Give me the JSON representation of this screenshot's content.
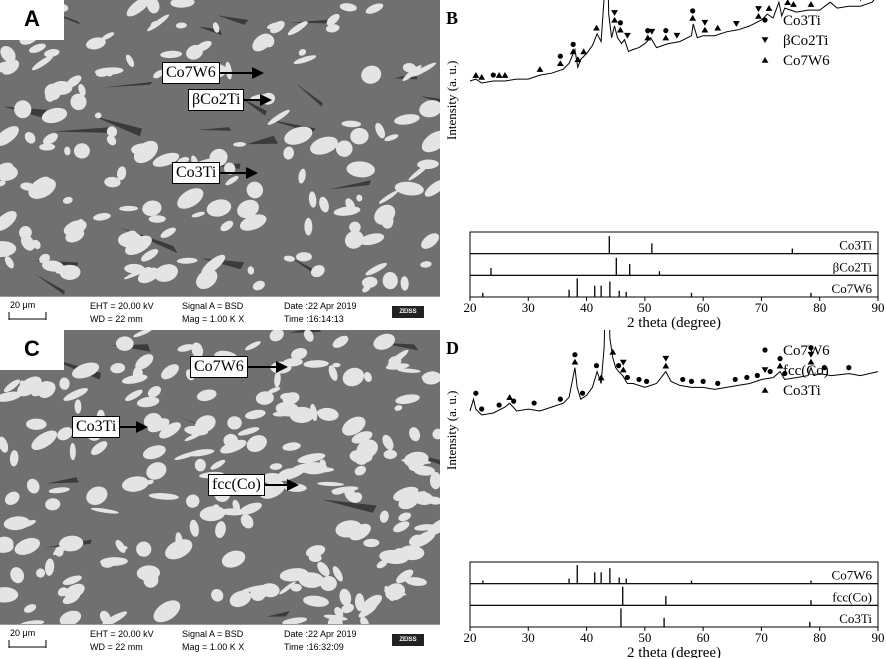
{
  "panels": {
    "A": {
      "label": "A",
      "annotations": [
        {
          "text": "Co7W6"
        },
        {
          "text": "βCo2Ti"
        },
        {
          "text": "Co3Ti"
        }
      ],
      "databar": {
        "scale": "20 μm",
        "eht": "EHT = 20.00 kV",
        "wd": "WD =  22 mm",
        "signal": "Signal A = BSD",
        "mag": "Mag =    1.00 K X",
        "date": "Date :22 Apr 2019",
        "time": "Time :16:14:13",
        "brand": "ZEISS"
      }
    },
    "C": {
      "label": "C",
      "annotations": [
        {
          "text": "Co7W6"
        },
        {
          "text": "Co3Ti"
        },
        {
          "text": "fcc(Co)"
        }
      ],
      "databar": {
        "scale": "20 μm",
        "eht": "EHT = 20.00 kV",
        "wd": "WD =  22 mm",
        "signal": "Signal A = BSD",
        "mag": "Mag =    1.00 K X",
        "date": "Date :22 Apr 2019",
        "time": "Time :16:32:09",
        "brand": "ZEISS"
      }
    }
  },
  "chart_data": [
    {
      "panel_label": "B",
      "type": "line",
      "xlabel": "2 theta (degree)",
      "ylabel": "Intensity (a. u.)",
      "xlim": [
        20,
        90
      ],
      "xticks": [
        20,
        30,
        40,
        50,
        60,
        70,
        80,
        90
      ],
      "legend": [
        {
          "marker": "circle",
          "name": "Co3Ti"
        },
        {
          "marker": "triangle-down",
          "name": "βCo2Ti"
        },
        {
          "marker": "triangle-up",
          "name": "Co7W6"
        }
      ],
      "pattern": {
        "x": [
          20,
          21,
          22,
          24,
          26,
          28,
          30,
          32,
          34,
          36,
          37,
          38,
          38.5,
          39,
          40,
          41,
          41.8,
          42.5,
          43,
          43.4,
          43.8,
          44.3,
          44.8,
          45.3,
          46,
          46.5,
          47.2,
          48,
          49,
          50,
          51,
          52,
          54,
          56,
          58,
          58.3,
          59,
          60,
          62,
          64,
          66,
          68,
          70,
          71,
          72,
          73,
          73.5,
          74,
          75,
          76,
          78,
          80,
          81.8,
          83,
          85,
          87,
          88,
          89,
          90
        ],
        "y": [
          8,
          9,
          7,
          8,
          8,
          9,
          9,
          11,
          12,
          14,
          17,
          24,
          15,
          19,
          22,
          26,
          32,
          28,
          50,
          100,
          42,
          30,
          36,
          30,
          27,
          29,
          23,
          24,
          25,
          27,
          30,
          25,
          27,
          28,
          31,
          37,
          30,
          31,
          31,
          33,
          34,
          36,
          39,
          42,
          40,
          48,
          41,
          45,
          44,
          43,
          44,
          44,
          48,
          45,
          46,
          46,
          47,
          48,
          52
        ]
      },
      "ref_series": [
        {
          "name": "Co3Ti",
          "x": [
            43.9,
            51.2,
            75.3
          ],
          "h": [
            0.85,
            0.5,
            0.25
          ]
        },
        {
          "name": "βCo2Ti",
          "x": [
            23.6,
            45.1,
            47.4,
            52.5
          ],
          "h": [
            0.35,
            0.85,
            0.55,
            0.2
          ]
        },
        {
          "name": "Co7W6",
          "x": [
            22.2,
            37.0,
            38.4,
            41.4,
            42.5,
            44.0,
            45.6,
            46.8,
            58.0,
            78.5
          ],
          "h": [
            0.2,
            0.35,
            0.9,
            0.55,
            0.55,
            0.75,
            0.3,
            0.25,
            0.2,
            0.2
          ]
        }
      ],
      "markers": [
        {
          "x": 21,
          "y": 8,
          "symbols": [
            "triangle-up"
          ]
        },
        {
          "x": 22,
          "y": 7,
          "symbols": [
            "triangle-up"
          ]
        },
        {
          "x": 24,
          "y": 8,
          "symbols": [
            "circle"
          ]
        },
        {
          "x": 25,
          "y": 8,
          "symbols": [
            "triangle-up"
          ]
        },
        {
          "x": 26,
          "y": 8,
          "symbols": [
            "triangle-up"
          ]
        },
        {
          "x": 32,
          "y": 11,
          "symbols": [
            "triangle-up"
          ]
        },
        {
          "x": 35.5,
          "y": 14,
          "symbols": [
            "triangle-up",
            "circle"
          ]
        },
        {
          "x": 37.7,
          "y": 20,
          "symbols": [
            "triangle-up",
            "circle"
          ]
        },
        {
          "x": 38.5,
          "y": 16,
          "symbols": [
            "triangle-up"
          ]
        },
        {
          "x": 39.5,
          "y": 20,
          "symbols": [
            "triangle-up"
          ]
        },
        {
          "x": 41.7,
          "y": 32,
          "symbols": [
            "triangle-up"
          ]
        },
        {
          "x": 43.4,
          "y": 100,
          "symbols": [
            "triangle-up",
            "circle"
          ]
        },
        {
          "x": 44.8,
          "y": 36,
          "symbols": [
            "triangle-up",
            "triangle-down"
          ]
        },
        {
          "x": 45.8,
          "y": 31,
          "symbols": [
            "triangle-up",
            "circle"
          ]
        },
        {
          "x": 47,
          "y": 28,
          "symbols": [
            "triangle-down"
          ]
        },
        {
          "x": 50.5,
          "y": 27,
          "symbols": [
            "triangle-up",
            "circle"
          ]
        },
        {
          "x": 51.2,
          "y": 30,
          "symbols": [
            "triangle-down"
          ]
        },
        {
          "x": 53.6,
          "y": 27,
          "symbols": [
            "triangle-up",
            "circle"
          ]
        },
        {
          "x": 55.5,
          "y": 28,
          "symbols": [
            "triangle-down"
          ]
        },
        {
          "x": 58.2,
          "y": 37,
          "symbols": [
            "triangle-up",
            "circle"
          ]
        },
        {
          "x": 60.3,
          "y": 31,
          "symbols": [
            "triangle-up",
            "triangle-down"
          ]
        },
        {
          "x": 62.5,
          "y": 32,
          "symbols": [
            "triangle-up"
          ]
        },
        {
          "x": 65.7,
          "y": 34,
          "symbols": [
            "triangle-down"
          ]
        },
        {
          "x": 69.5,
          "y": 38,
          "symbols": [
            "triangle-up",
            "triangle-down"
          ]
        },
        {
          "x": 71.3,
          "y": 42,
          "symbols": [
            "triangle-up"
          ]
        },
        {
          "x": 73.2,
          "y": 48,
          "symbols": [
            "triangle-up",
            "triangle-down"
          ]
        },
        {
          "x": 74.5,
          "y": 45,
          "symbols": [
            "triangle-up"
          ]
        },
        {
          "x": 75.5,
          "y": 44,
          "symbols": [
            "triangle-up"
          ]
        },
        {
          "x": 78.5,
          "y": 44,
          "symbols": [
            "triangle-up"
          ]
        },
        {
          "x": 81.8,
          "y": 48,
          "symbols": [
            "triangle-up",
            "triangle-down"
          ]
        },
        {
          "x": 87,
          "y": 47,
          "symbols": [
            "triangle-down"
          ]
        }
      ]
    },
    {
      "panel_label": "D",
      "type": "line",
      "xlabel": "2 theta (degree)",
      "ylabel": "Intensity (a. u.)",
      "xlim": [
        20,
        90
      ],
      "xticks": [
        20,
        30,
        40,
        50,
        60,
        70,
        80,
        90
      ],
      "legend": [
        {
          "marker": "circle",
          "name": "Co7W6"
        },
        {
          "marker": "triangle-down",
          "name": "fcc(Co)"
        },
        {
          "marker": "triangle-up",
          "name": "Co3Ti"
        }
      ],
      "pattern": {
        "x": [
          20,
          20.6,
          21,
          22,
          24,
          26,
          26.8,
          28,
          30,
          32,
          34,
          36,
          37,
          38,
          38.4,
          39,
          40,
          41,
          41.8,
          42.5,
          43,
          43.5,
          44,
          44.5,
          45,
          45.5,
          46.2,
          47,
          48,
          50,
          52,
          53.6,
          54.5,
          56,
          58,
          60,
          62,
          64,
          66,
          68,
          70,
          72,
          73.2,
          74,
          76,
          78,
          78.5,
          79,
          80,
          82,
          85,
          87,
          90
        ],
        "y": [
          8,
          14,
          9,
          6,
          7,
          10,
          12,
          8,
          9,
          8,
          10,
          12,
          15,
          30,
          20,
          14,
          16,
          20,
          28,
          22,
          40,
          100,
          45,
          35,
          30,
          28,
          26,
          22,
          22,
          20,
          22,
          28,
          23,
          21,
          20,
          20,
          19,
          20,
          21,
          22,
          24,
          25,
          28,
          24,
          25,
          26,
          30,
          26,
          27,
          26,
          27,
          26,
          28
        ]
      },
      "ref_series": [
        {
          "name": "Co7W6",
          "x": [
            22.2,
            37.0,
            38.4,
            41.4,
            42.5,
            44.0,
            45.6,
            46.8,
            58.0,
            78.5
          ],
          "h": [
            0.15,
            0.25,
            0.9,
            0.55,
            0.55,
            0.75,
            0.3,
            0.25,
            0.15,
            0.15
          ]
        },
        {
          "name": "fcc(Co)",
          "x": [
            46.2,
            53.6,
            78.5
          ],
          "h": [
            0.9,
            0.45,
            0.25
          ]
        },
        {
          "name": "Co3Ti",
          "x": [
            45.9,
            53.3,
            78.3
          ],
          "h": [
            0.9,
            0.45,
            0.25
          ]
        }
      ],
      "markers": [
        {
          "x": 21,
          "y": 14,
          "symbols": [
            "circle"
          ]
        },
        {
          "x": 22,
          "y": 6,
          "symbols": [
            "circle"
          ]
        },
        {
          "x": 25,
          "y": 8,
          "symbols": [
            "circle"
          ]
        },
        {
          "x": 26.8,
          "y": 12,
          "symbols": [
            "triangle-up"
          ]
        },
        {
          "x": 27.5,
          "y": 10,
          "symbols": [
            "circle"
          ]
        },
        {
          "x": 31,
          "y": 9,
          "symbols": [
            "circle"
          ]
        },
        {
          "x": 35.5,
          "y": 11,
          "symbols": [
            "circle"
          ]
        },
        {
          "x": 38,
          "y": 30,
          "symbols": [
            "triangle-up",
            "circle"
          ]
        },
        {
          "x": 39.3,
          "y": 14,
          "symbols": [
            "circle"
          ]
        },
        {
          "x": 41.7,
          "y": 28,
          "symbols": [
            "circle"
          ]
        },
        {
          "x": 42.5,
          "y": 22,
          "symbols": [
            "triangle-up"
          ]
        },
        {
          "x": 43.5,
          "y": 100,
          "symbols": [
            "circle"
          ]
        },
        {
          "x": 44.5,
          "y": 35,
          "symbols": [
            "triangle-up"
          ]
        },
        {
          "x": 45.5,
          "y": 28,
          "symbols": [
            "circle"
          ]
        },
        {
          "x": 46.3,
          "y": 26,
          "symbols": [
            "triangle-up",
            "triangle-down"
          ]
        },
        {
          "x": 47,
          "y": 22,
          "symbols": [
            "circle"
          ]
        },
        {
          "x": 49,
          "y": 21,
          "symbols": [
            "circle"
          ]
        },
        {
          "x": 50.3,
          "y": 20,
          "symbols": [
            "circle"
          ]
        },
        {
          "x": 53.6,
          "y": 28,
          "symbols": [
            "triangle-up",
            "triangle-down"
          ]
        },
        {
          "x": 56.5,
          "y": 21,
          "symbols": [
            "circle"
          ]
        },
        {
          "x": 58,
          "y": 20,
          "symbols": [
            "circle"
          ]
        },
        {
          "x": 60,
          "y": 20,
          "symbols": [
            "circle"
          ]
        },
        {
          "x": 62.5,
          "y": 19,
          "symbols": [
            "circle"
          ]
        },
        {
          "x": 65.5,
          "y": 21,
          "symbols": [
            "circle"
          ]
        },
        {
          "x": 67.5,
          "y": 22,
          "symbols": [
            "circle"
          ]
        },
        {
          "x": 69.3,
          "y": 23,
          "symbols": [
            "circle"
          ]
        },
        {
          "x": 71.5,
          "y": 25,
          "symbols": [
            "circle"
          ]
        },
        {
          "x": 73.2,
          "y": 28,
          "symbols": [
            "triangle-up",
            "circle"
          ]
        },
        {
          "x": 74,
          "y": 24,
          "symbols": [
            "circle"
          ]
        },
        {
          "x": 78.5,
          "y": 30,
          "symbols": [
            "triangle-up",
            "triangle-down",
            "circle"
          ]
        },
        {
          "x": 80.8,
          "y": 27,
          "symbols": [
            "circle"
          ]
        },
        {
          "x": 85,
          "y": 27,
          "symbols": [
            "circle"
          ]
        }
      ]
    }
  ]
}
